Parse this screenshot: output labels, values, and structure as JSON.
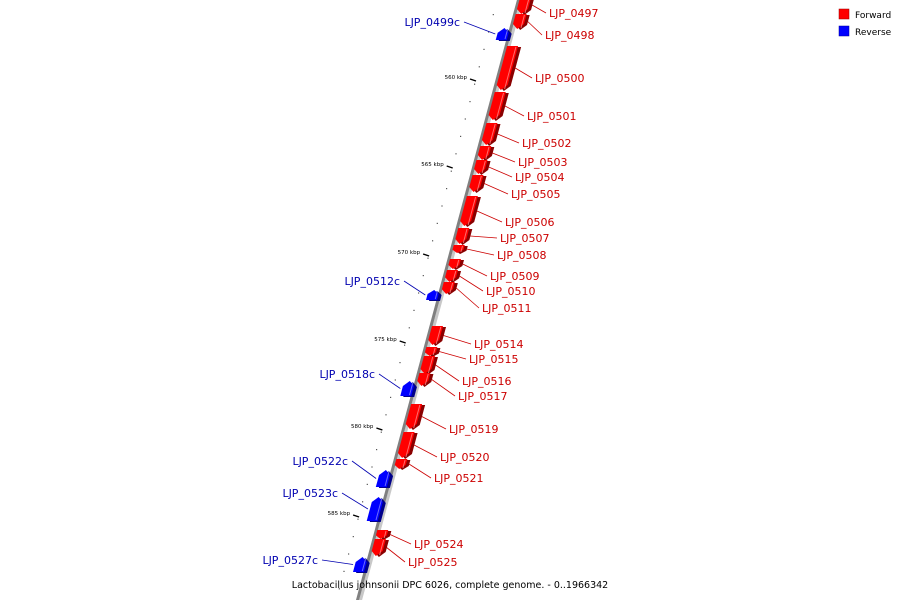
{
  "colors": {
    "forward": "#ff0000",
    "reverse": "#0000ff",
    "forward_label": "#cc0000",
    "reverse_label": "#0000b0",
    "backbone": "#808080"
  },
  "legend": {
    "forward": "Forward",
    "reverse": "Reverse"
  },
  "caption": "Lactobacillus johnsonii DPC 6026, complete genome. - 0..1966342",
  "ticks": [
    {
      "label": "560 kbp"
    },
    {
      "label": "565 kbp"
    },
    {
      "label": "570 kbp"
    },
    {
      "label": "575 kbp"
    },
    {
      "label": "580 kbp"
    },
    {
      "label": "585 kbp"
    }
  ],
  "genes": [
    {
      "name": "LJP_0497",
      "strand": "forward"
    },
    {
      "name": "LJP_0498",
      "strand": "forward"
    },
    {
      "name": "LJP_0499c",
      "strand": "reverse"
    },
    {
      "name": "LJP_0500",
      "strand": "forward"
    },
    {
      "name": "LJP_0501",
      "strand": "forward"
    },
    {
      "name": "LJP_0502",
      "strand": "forward"
    },
    {
      "name": "LJP_0503",
      "strand": "forward"
    },
    {
      "name": "LJP_0504",
      "strand": "forward"
    },
    {
      "name": "LJP_0505",
      "strand": "forward"
    },
    {
      "name": "LJP_0506",
      "strand": "forward"
    },
    {
      "name": "LJP_0507",
      "strand": "forward"
    },
    {
      "name": "LJP_0508",
      "strand": "forward"
    },
    {
      "name": "LJP_0509",
      "strand": "forward"
    },
    {
      "name": "LJP_0510",
      "strand": "forward"
    },
    {
      "name": "LJP_0511",
      "strand": "forward"
    },
    {
      "name": "LJP_0512c",
      "strand": "reverse"
    },
    {
      "name": "LJP_0514",
      "strand": "forward"
    },
    {
      "name": "LJP_0515",
      "strand": "forward"
    },
    {
      "name": "LJP_0516",
      "strand": "forward"
    },
    {
      "name": "LJP_0517",
      "strand": "forward"
    },
    {
      "name": "LJP_0518c",
      "strand": "reverse"
    },
    {
      "name": "LJP_0519",
      "strand": "forward"
    },
    {
      "name": "LJP_0520",
      "strand": "forward"
    },
    {
      "name": "LJP_0521",
      "strand": "forward"
    },
    {
      "name": "LJP_0522c",
      "strand": "reverse"
    },
    {
      "name": "LJP_0523c",
      "strand": "reverse"
    },
    {
      "name": "LJP_0524",
      "strand": "forward"
    },
    {
      "name": "LJP_0525",
      "strand": "forward"
    },
    {
      "name": "LJP_0527c",
      "strand": "reverse"
    }
  ]
}
